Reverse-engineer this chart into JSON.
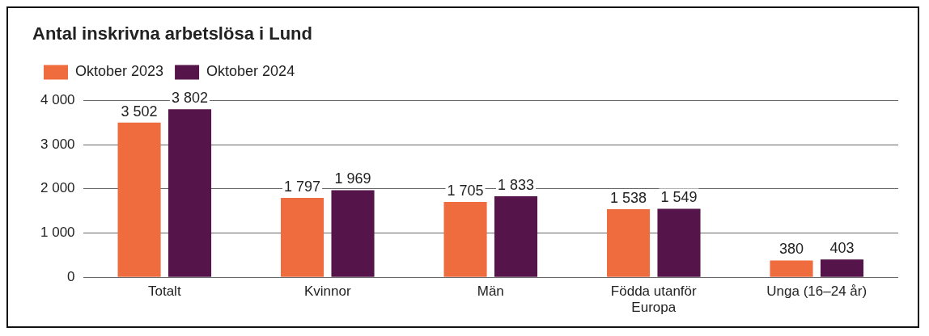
{
  "chart_data": {
    "type": "bar",
    "title": "Antal inskrivna arbetslösa i Lund",
    "categories": [
      "Totalt",
      "Kvinnor",
      "Män",
      "Födda utanför Europa",
      "Unga (16–24 år)"
    ],
    "series": [
      {
        "name": "Oktober 2023",
        "color": "#ef6c3f",
        "values": [
          3502,
          1797,
          1705,
          1538,
          380
        ],
        "value_labels": [
          "3 502",
          "1 797",
          "1 705",
          "1 538",
          "380"
        ]
      },
      {
        "name": "Oktober 2024",
        "color": "#55154b",
        "values": [
          3802,
          1969,
          1833,
          1549,
          403
        ],
        "value_labels": [
          "3 802",
          "1 969",
          "1 833",
          "1 549",
          "403"
        ]
      }
    ],
    "ylim": [
      0,
      4000
    ],
    "yticks": [
      {
        "value": 0,
        "label": "0"
      },
      {
        "value": 1000,
        "label": "1 000"
      },
      {
        "value": 2000,
        "label": "2 000"
      },
      {
        "value": 3000,
        "label": "3 000"
      },
      {
        "value": 4000,
        "label": "4 000"
      }
    ],
    "grid": "y",
    "legend": "top left"
  }
}
